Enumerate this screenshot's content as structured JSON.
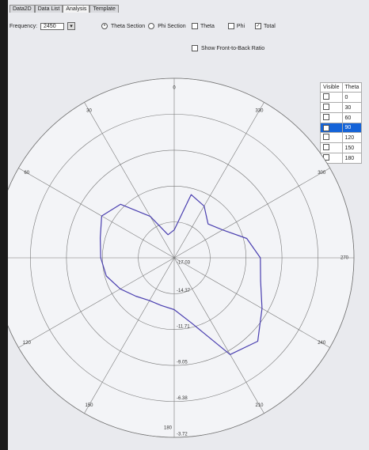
{
  "tabs": [
    "Data2D",
    "Data List",
    "Analysis",
    "Template"
  ],
  "frequency": {
    "label": "Frequency:",
    "value": "2450"
  },
  "section_options": [
    "Theta Section",
    "Phi Section"
  ],
  "component_options": [
    "Theta",
    "Phi",
    "Total"
  ],
  "front_to_back": "Show Front-to-Back Ratio",
  "table": {
    "headers": [
      "Visible",
      "Theta"
    ],
    "rows": [
      "0",
      "30",
      "60",
      "90",
      "120",
      "150",
      "180"
    ]
  },
  "chart_data": {
    "type": "polar",
    "angle_ticks": [
      0,
      30,
      60,
      90,
      120,
      150,
      180,
      210,
      240,
      270,
      300,
      330
    ],
    "rlim": [
      -17.03,
      -3.72
    ],
    "rticks": [
      -17.03,
      -14.37,
      -11.71,
      -9.05,
      -6.38,
      -3.72
    ],
    "series": [
      {
        "color": "#4a3fb0",
        "x": [
          0,
          15,
          30,
          45,
          60,
          75,
          90,
          105,
          120,
          135,
          150,
          165,
          180,
          195,
          210,
          225,
          240,
          255,
          270,
          285,
          300,
          315,
          330,
          345
        ],
        "values": [
          -14.96,
          -15.26,
          -13.48,
          -11.42,
          -10.83,
          -11.36,
          -11.59,
          -11.83,
          -12.42,
          -13.01,
          -13.37,
          -13.37,
          -13.19,
          -12.01,
          -8.75,
          -8.28,
          -9.52,
          -10.41,
          -10.65,
          -11.47,
          -12.89,
          -13.48,
          -12.6,
          -12.18
        ]
      }
    ]
  }
}
